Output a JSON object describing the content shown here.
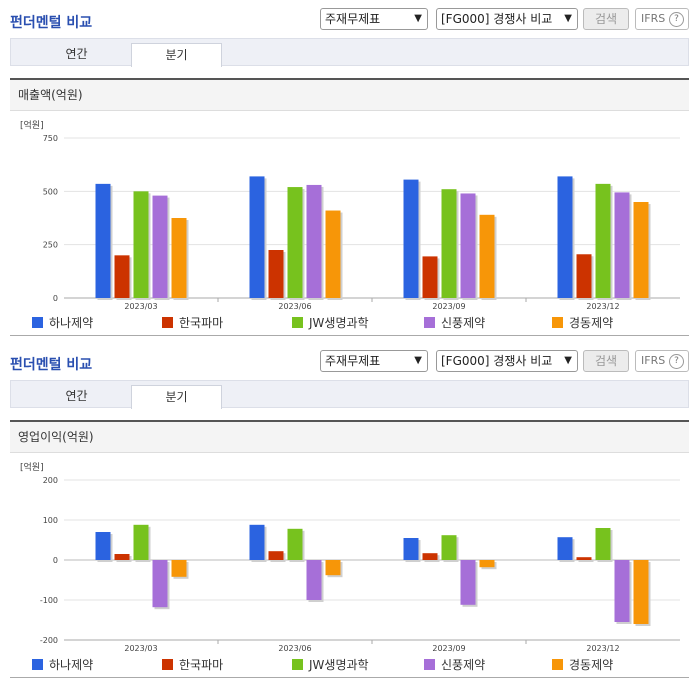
{
  "sections": [
    {
      "title": "펀더멘털 비교",
      "select_main": "주재무제표",
      "select_compare": "[FG000] 경쟁사 비교",
      "search_label": "검색",
      "ifrs_label": "IFRS",
      "ifrs_help": "?",
      "tabs": [
        "연간",
        "분기"
      ],
      "active_tab": "분기",
      "panel_title": "매출액(억원)",
      "unit": "[억원]"
    },
    {
      "title": "펀더멘털 비교",
      "select_main": "주재무제표",
      "select_compare": "[FG000] 경쟁사 비교",
      "search_label": "검색",
      "ifrs_label": "IFRS",
      "ifrs_help": "?",
      "tabs": [
        "연간",
        "분기"
      ],
      "active_tab": "분기",
      "panel_title": "영업이익(억원)",
      "unit": "[억원]"
    }
  ],
  "colors": {
    "accent_title": "#2a4fb0",
    "하나제약": "#2b63e0",
    "한국파마": "#cc3300",
    "JW생명과학": "#77c21e",
    "신풍제약": "#a66fd8",
    "경동제약": "#f79608"
  },
  "chart_data": [
    {
      "type": "bar",
      "title": "매출액(억원)",
      "ylabel": "[억원]",
      "categories": [
        "2023/03",
        "2023/06",
        "2023/09",
        "2023/12"
      ],
      "ylim": [
        0,
        750
      ],
      "yticks": [
        "0",
        "250",
        "500",
        "750"
      ],
      "ytick_values": [
        0,
        250,
        500,
        750
      ],
      "grid": true,
      "legend": "bottom",
      "series": [
        {
          "name": "하나제약",
          "values": [
            535,
            570,
            555,
            570
          ]
        },
        {
          "name": "한국파마",
          "values": [
            200,
            225,
            195,
            205
          ]
        },
        {
          "name": "JW생명과학",
          "values": [
            500,
            520,
            510,
            535
          ]
        },
        {
          "name": "신풍제약",
          "values": [
            480,
            530,
            490,
            495
          ]
        },
        {
          "name": "경동제약",
          "values": [
            375,
            410,
            390,
            450
          ]
        }
      ]
    },
    {
      "type": "bar",
      "title": "영업이익(억원)",
      "ylabel": "[억원]",
      "categories": [
        "2023/03",
        "2023/06",
        "2023/09",
        "2023/12"
      ],
      "ylim": [
        -200,
        200
      ],
      "yticks": [
        "-200",
        "-100",
        "0",
        "100",
        "200"
      ],
      "ytick_values": [
        -200,
        -100,
        0,
        100,
        200
      ],
      "grid": true,
      "legend": "bottom",
      "series": [
        {
          "name": "하나제약",
          "values": [
            70,
            88,
            55,
            57
          ]
        },
        {
          "name": "한국파마",
          "values": [
            15,
            22,
            17,
            7
          ]
        },
        {
          "name": "JW생명과학",
          "values": [
            88,
            78,
            62,
            80
          ]
        },
        {
          "name": "신풍제약",
          "values": [
            -118,
            -100,
            -112,
            -155
          ]
        },
        {
          "name": "경동제약",
          "values": [
            -42,
            -38,
            -18,
            -160
          ]
        }
      ]
    }
  ]
}
